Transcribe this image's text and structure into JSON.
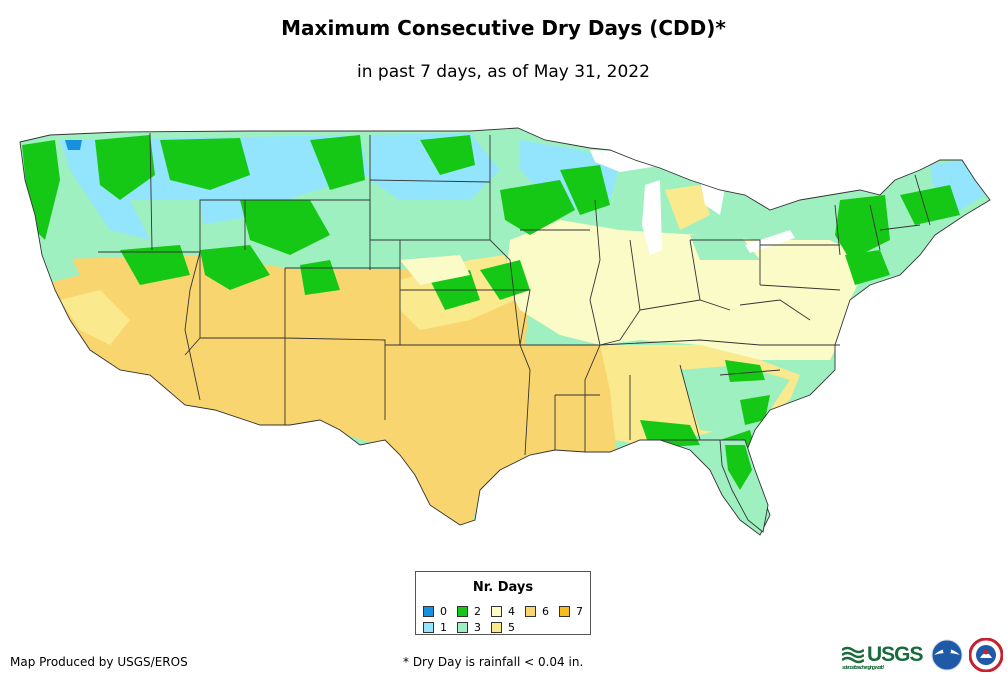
{
  "title": "Maximum Consecutive Dry Days (CDD)*",
  "subtitle": "in past 7 days, as of May 31, 2022",
  "legend": {
    "title": "Nr. Days",
    "items": [
      {
        "label": "0",
        "color": "#1591e0"
      },
      {
        "label": "2",
        "color": "#16c816"
      },
      {
        "label": "4",
        "color": "#fbfbc7"
      },
      {
        "label": "6",
        "color": "#f8d56e"
      },
      {
        "label": "7",
        "color": "#f6bd1e"
      },
      {
        "label": "1",
        "color": "#93e4fd"
      },
      {
        "label": "3",
        "color": "#9ff0c0"
      },
      {
        "label": "5",
        "color": "#fbe98e"
      }
    ]
  },
  "footer": {
    "producer": "Map Produced by USGS/EROS",
    "footnote": "* Dry Day is rainfall < 0.04 in.",
    "usgs_logo": "USGS",
    "usgs_tagline": "science for a changing world"
  }
}
